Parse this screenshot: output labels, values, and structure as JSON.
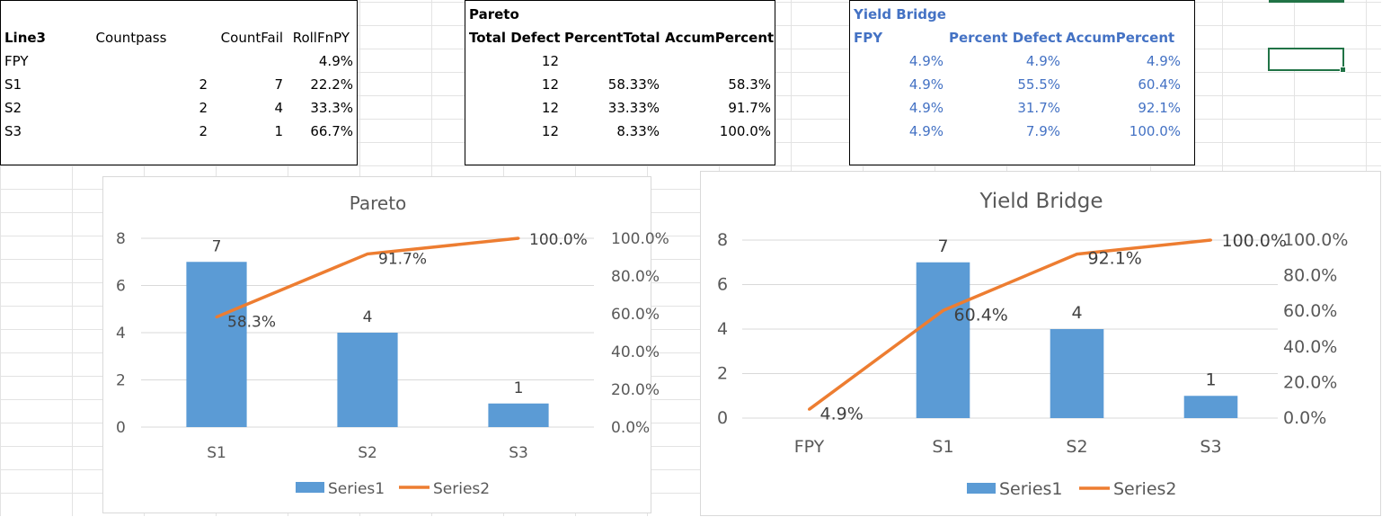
{
  "table1": {
    "headers": [
      "Line3",
      "Countpass",
      "CountFail",
      "RollFnPY"
    ],
    "rows": [
      [
        "FPY",
        "",
        "",
        "4.9%"
      ],
      [
        "S1",
        "2",
        "7",
        "22.2%"
      ],
      [
        "S2",
        "2",
        "4",
        "33.3%"
      ],
      [
        "S3",
        "2",
        "1",
        "66.7%"
      ]
    ]
  },
  "table2": {
    "title": "Pareto",
    "headers": [
      "Total Defect",
      "PercentTotal",
      "AccumPercent"
    ],
    "rows": [
      [
        "12",
        "",
        ""
      ],
      [
        "12",
        "58.33%",
        "58.3%"
      ],
      [
        "12",
        "33.33%",
        "91.7%"
      ],
      [
        "12",
        "8.33%",
        "100.0%"
      ]
    ]
  },
  "table3": {
    "title": "Yield Bridge",
    "headers": [
      "FPY",
      "Percent Defect",
      "AccumPercent"
    ],
    "rows": [
      [
        "4.9%",
        "4.9%",
        "4.9%"
      ],
      [
        "4.9%",
        "55.5%",
        "60.4%"
      ],
      [
        "4.9%",
        "31.7%",
        "92.1%"
      ],
      [
        "4.9%",
        "7.9%",
        "100.0%"
      ]
    ]
  },
  "chart_data": [
    {
      "type": "bar",
      "title": "Pareto",
      "categories": [
        "S1",
        "S2",
        "S3"
      ],
      "series": [
        {
          "name": "Series1",
          "type": "bar",
          "axis": "primary",
          "values": [
            7,
            4,
            1
          ],
          "labels": [
            "7",
            "4",
            "1"
          ],
          "color": "#5b9bd5"
        },
        {
          "name": "Series2",
          "type": "line",
          "axis": "secondary",
          "values": [
            58.3,
            91.7,
            100.0
          ],
          "labels": [
            "58.3%",
            "91.7%",
            "100.0%"
          ],
          "color": "#ed7d31"
        }
      ],
      "ylim": [
        0,
        8
      ],
      "yticks": [
        "0",
        "2",
        "4",
        "6",
        "8"
      ],
      "y2lim": [
        0,
        100
      ],
      "y2ticks": [
        "0.0%",
        "20.0%",
        "40.0%",
        "60.0%",
        "80.0%",
        "100.0%"
      ],
      "legend": "bottom",
      "grid": true
    },
    {
      "type": "bar",
      "title": "Yield Bridge",
      "categories": [
        "FPY",
        "S1",
        "S2",
        "S3"
      ],
      "series": [
        {
          "name": "Series1",
          "type": "bar",
          "axis": "primary",
          "values": [
            0,
            7,
            4,
            1
          ],
          "labels": [
            "",
            "7",
            "4",
            "1"
          ],
          "color": "#5b9bd5"
        },
        {
          "name": "Series2",
          "type": "line",
          "axis": "secondary",
          "values": [
            4.9,
            60.4,
            92.1,
            100.0
          ],
          "labels": [
            "4.9%",
            "60.4%",
            "92.1%",
            "100.0%"
          ],
          "color": "#ed7d31"
        }
      ],
      "ylim": [
        0,
        8
      ],
      "yticks": [
        "0",
        "2",
        "4",
        "6",
        "8"
      ],
      "y2lim": [
        0,
        100
      ],
      "y2ticks": [
        "0.0%",
        "20.0%",
        "40.0%",
        "60.0%",
        "80.0%",
        "100.0%"
      ],
      "legend": "bottom",
      "grid": true
    }
  ]
}
